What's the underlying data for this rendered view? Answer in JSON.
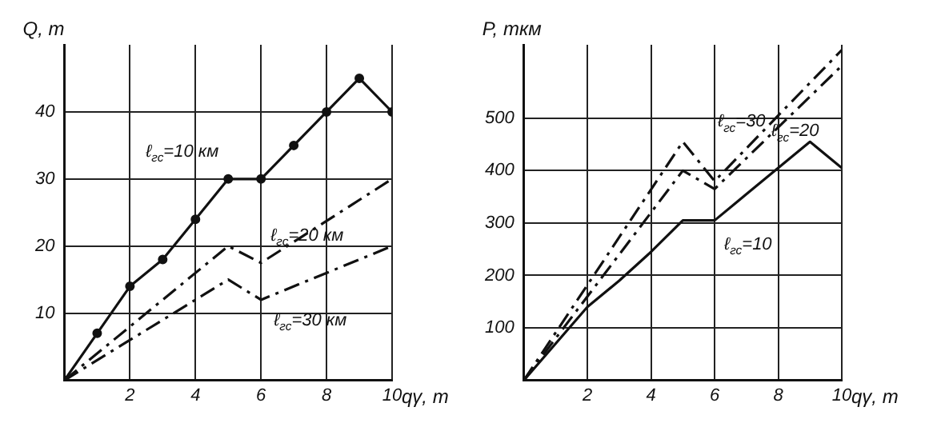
{
  "chart_data": [
    {
      "type": "line",
      "xlabel": "qγ, т",
      "ylabel": "Q, т",
      "xlim": [
        0,
        10
      ],
      "ylim": [
        0,
        50
      ],
      "xticks": [
        2,
        4,
        6,
        8,
        10
      ],
      "yticks": [
        10,
        20,
        30,
        40
      ],
      "grid": true,
      "legend": false,
      "series": [
        {
          "name": "ℓ$_{гс}$=10 км",
          "color": "#111111",
          "marker": "circle",
          "line_style": "solid",
          "x": [
            0,
            1,
            2,
            3,
            4,
            5,
            6,
            7,
            8,
            9,
            10
          ],
          "values": [
            0,
            7,
            14,
            18,
            24,
            30,
            30,
            35,
            40,
            45,
            40
          ]
        },
        {
          "name": "ℓ$_{гс}$=20 км",
          "color": "#111111",
          "marker": "none",
          "line_style": "dashed",
          "x": [
            0,
            5,
            6,
            10
          ],
          "values": [
            0,
            20,
            17.5,
            30
          ]
        },
        {
          "name": "ℓ$_{гс}$=30 км",
          "color": "#111111",
          "marker": "none",
          "line_style": "dashed",
          "x": [
            0,
            5,
            6,
            10
          ],
          "values": [
            0,
            15,
            12,
            20
          ]
        }
      ]
    },
    {
      "type": "line",
      "xlabel": "qγ, т",
      "ylabel": "P, ткм",
      "xlim": [
        0,
        10
      ],
      "ylim": [
        0,
        640
      ],
      "xticks": [
        2,
        4,
        6,
        8,
        10
      ],
      "yticks": [
        100,
        200,
        300,
        400,
        500
      ],
      "grid": true,
      "legend": false,
      "series": [
        {
          "name": "ℓ$_{гс}$=10",
          "color": "#111111",
          "marker": "none",
          "line_style": "solid",
          "x": [
            0,
            2,
            3,
            4,
            5,
            6,
            7,
            8,
            9,
            10
          ],
          "values": [
            0,
            140,
            190,
            245,
            305,
            305,
            355,
            405,
            455,
            405
          ]
        },
        {
          "name": "ℓ$_{гс}$=20",
          "color": "#111111",
          "marker": "none",
          "line_style": "dashed",
          "x": [
            0,
            5,
            6,
            10
          ],
          "values": [
            0,
            400,
            365,
            600
          ]
        },
        {
          "name": "ℓ$_{гс}$=30",
          "color": "#111111",
          "marker": "none",
          "line_style": "dashed",
          "x": [
            0,
            5,
            6,
            10
          ],
          "values": [
            0,
            455,
            380,
            630
          ]
        }
      ]
    }
  ]
}
